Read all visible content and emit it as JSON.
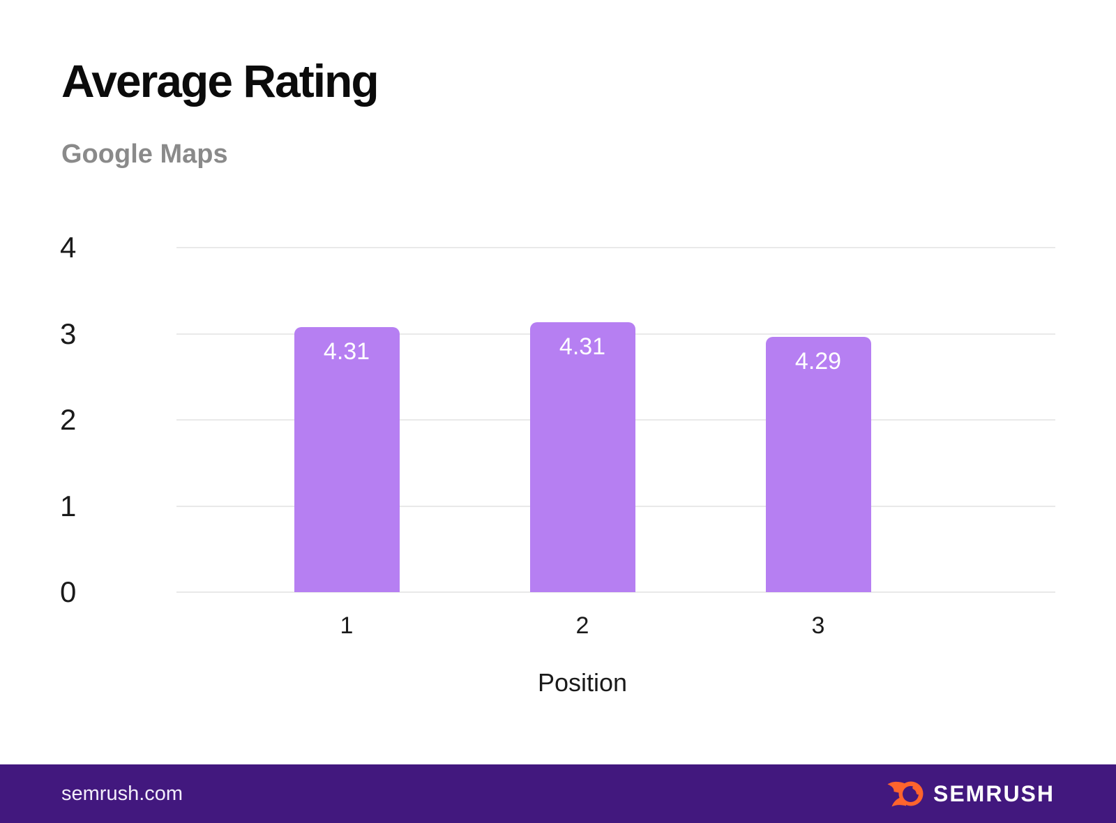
{
  "page": {
    "title": "Average Rating",
    "subtitle": "Google Maps",
    "footer": {
      "site": "semrush.com",
      "brand": "SEMRUSH"
    },
    "colors": {
      "bar": "#B67FF2",
      "footer_bg": "#42187E",
      "brand_orange": "#FF642D",
      "grid": "#E9E9E9",
      "title_text": "#0B0B0B",
      "subtitle_text": "#8A8A8A",
      "bar_label_text": "#FFFFFF"
    }
  },
  "chart_data": {
    "type": "bar",
    "categories": [
      "1",
      "2",
      "3"
    ],
    "values": [
      4.31,
      4.31,
      4.29
    ],
    "value_labels": [
      "4.31",
      "4.31",
      "4.29"
    ],
    "bar_display_heights_axis_units": [
      3.08,
      3.13,
      2.96
    ],
    "title": "Average Rating",
    "subtitle": "Google Maps",
    "xlabel": "Position",
    "ylabel": "",
    "ylim": [
      0,
      4
    ],
    "yticks": [
      0,
      1,
      2,
      3,
      4
    ],
    "grid": true,
    "legend": false
  }
}
